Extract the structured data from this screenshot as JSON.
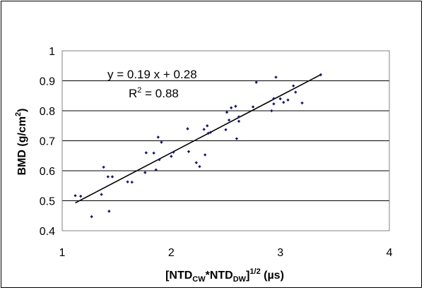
{
  "chart_data": {
    "type": "scatter",
    "xlabel": {
      "main": "[NTD",
      "sub1": "CW",
      "mid": "*NTD",
      "sub2": "DW",
      "close": "]",
      "sup": "1/2",
      "unit": " (µs)"
    },
    "ylabel": {
      "main": "BMD (g/cm",
      "sup": "2",
      "close": ")"
    },
    "xlim": [
      1,
      4
    ],
    "ylim": [
      0.4,
      1.0
    ],
    "x_ticks": [
      1,
      2,
      3,
      4
    ],
    "y_ticks": [
      0.4,
      0.5,
      0.6,
      0.7,
      0.8,
      0.9,
      1.0
    ],
    "x_tick_labels": [
      "1",
      "2",
      "3",
      "4"
    ],
    "y_tick_labels": [
      "0.4",
      "0.5",
      "0.6",
      "0.7",
      "0.8",
      "0.9",
      "1"
    ],
    "grid": "horizontal",
    "marker_color": "#1a1a6e",
    "trendline": {
      "slope": 0.19,
      "intercept": 0.28,
      "x_range": [
        1.12,
        3.38
      ],
      "color": "#000000"
    },
    "annotations": {
      "equation": "y = 0.19 x + 0.28",
      "r2_prefix": "R",
      "r2_sup": "2",
      "r2_value": " = 0.88"
    },
    "points": [
      {
        "x": 1.12,
        "y": 0.517
      },
      {
        "x": 1.17,
        "y": 0.515
      },
      {
        "x": 1.27,
        "y": 0.447
      },
      {
        "x": 1.36,
        "y": 0.521
      },
      {
        "x": 1.38,
        "y": 0.612
      },
      {
        "x": 1.42,
        "y": 0.58
      },
      {
        "x": 1.43,
        "y": 0.465
      },
      {
        "x": 1.46,
        "y": 0.58
      },
      {
        "x": 1.6,
        "y": 0.563
      },
      {
        "x": 1.64,
        "y": 0.562
      },
      {
        "x": 1.76,
        "y": 0.594
      },
      {
        "x": 1.77,
        "y": 0.66
      },
      {
        "x": 1.84,
        "y": 0.659
      },
      {
        "x": 1.86,
        "y": 0.603
      },
      {
        "x": 1.88,
        "y": 0.712
      },
      {
        "x": 1.89,
        "y": 0.637
      },
      {
        "x": 1.91,
        "y": 0.695
      },
      {
        "x": 2.0,
        "y": 0.648
      },
      {
        "x": 2.02,
        "y": 0.662
      },
      {
        "x": 2.15,
        "y": 0.74
      },
      {
        "x": 2.16,
        "y": 0.664
      },
      {
        "x": 2.23,
        "y": 0.627
      },
      {
        "x": 2.26,
        "y": 0.614
      },
      {
        "x": 2.3,
        "y": 0.738
      },
      {
        "x": 2.31,
        "y": 0.653
      },
      {
        "x": 2.33,
        "y": 0.75
      },
      {
        "x": 2.34,
        "y": 0.725
      },
      {
        "x": 2.36,
        "y": 0.728
      },
      {
        "x": 2.5,
        "y": 0.737
      },
      {
        "x": 2.51,
        "y": 0.795
      },
      {
        "x": 2.53,
        "y": 0.769
      },
      {
        "x": 2.55,
        "y": 0.81
      },
      {
        "x": 2.59,
        "y": 0.815
      },
      {
        "x": 2.6,
        "y": 0.707
      },
      {
        "x": 2.62,
        "y": 0.78
      },
      {
        "x": 2.62,
        "y": 0.765
      },
      {
        "x": 2.75,
        "y": 0.813
      },
      {
        "x": 2.78,
        "y": 0.895
      },
      {
        "x": 2.92,
        "y": 0.8
      },
      {
        "x": 2.94,
        "y": 0.823
      },
      {
        "x": 2.94,
        "y": 0.841
      },
      {
        "x": 2.96,
        "y": 0.912
      },
      {
        "x": 3.0,
        "y": 0.84
      },
      {
        "x": 3.03,
        "y": 0.828
      },
      {
        "x": 3.07,
        "y": 0.836
      },
      {
        "x": 3.12,
        "y": 0.883
      },
      {
        "x": 3.14,
        "y": 0.862
      },
      {
        "x": 3.2,
        "y": 0.826
      },
      {
        "x": 3.37,
        "y": 0.92
      }
    ]
  }
}
